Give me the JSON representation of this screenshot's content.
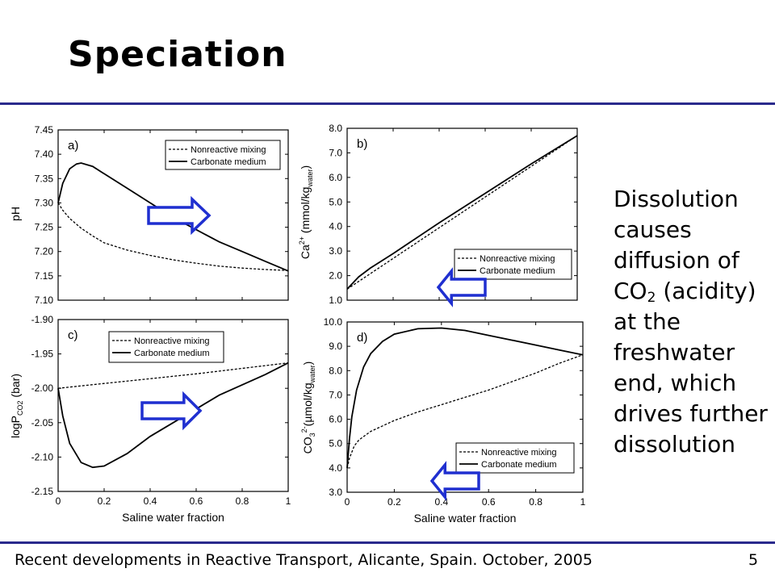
{
  "slide": {
    "title": "Speciation",
    "side_text": {
      "line1": "Dissolution causes diffusion of CO",
      "sub": "2",
      "line2": " (acidity) at the freshwater end, which drives further dissolution"
    },
    "footer": "Recent developments in Reactive Transport, Alicante, Spain. October, 2005",
    "page_number": "5",
    "colors": {
      "rule": "#2a2a8c",
      "arrow": "#1f2fd0",
      "ink": "#000000"
    }
  },
  "chart_data": [
    {
      "type": "line",
      "panel_label": "a)",
      "xlabel": "",
      "ylabel": "pH",
      "xlim": [
        0,
        1
      ],
      "ylim": [
        7.1,
        7.45
      ],
      "yticks": [
        "7.45",
        "7.40",
        "7.35",
        "7.30",
        "7.25",
        "7.20",
        "7.15",
        "7.10"
      ],
      "legend": [
        "Nonreactive mixing",
        "Carbonate medium"
      ],
      "series": [
        {
          "name": "Nonreactive mixing",
          "style": "dashed",
          "x": [
            0,
            0.02,
            0.05,
            0.1,
            0.15,
            0.2,
            0.3,
            0.4,
            0.5,
            0.6,
            0.7,
            0.8,
            0.9,
            1.0
          ],
          "y": [
            7.3,
            7.285,
            7.268,
            7.248,
            7.232,
            7.218,
            7.203,
            7.192,
            7.183,
            7.176,
            7.17,
            7.166,
            7.163,
            7.161
          ]
        },
        {
          "name": "Carbonate medium",
          "style": "solid",
          "x": [
            0,
            0.02,
            0.05,
            0.08,
            0.1,
            0.15,
            0.2,
            0.3,
            0.4,
            0.5,
            0.6,
            0.7,
            0.8,
            0.9,
            1.0
          ],
          "y": [
            7.3,
            7.34,
            7.37,
            7.38,
            7.382,
            7.375,
            7.36,
            7.33,
            7.3,
            7.27,
            7.245,
            7.22,
            7.2,
            7.18,
            7.16
          ]
        }
      ]
    },
    {
      "type": "line",
      "panel_label": "b)",
      "xlabel": "",
      "ylabel": "Ca2+ (mmol/kgwater)",
      "xlim": [
        0,
        1
      ],
      "ylim": [
        1.0,
        8.0
      ],
      "yticks": [
        "8.0",
        "7.0",
        "6.0",
        "5.0",
        "4.0",
        "3.0",
        "2.0",
        "1.0"
      ],
      "legend": [
        "Nonreactive mixing",
        "Carbonate medium"
      ],
      "series": [
        {
          "name": "Nonreactive mixing",
          "style": "dashed",
          "x": [
            0,
            1.0
          ],
          "y": [
            1.45,
            7.7
          ]
        },
        {
          "name": "Carbonate medium",
          "style": "solid",
          "x": [
            0,
            0.05,
            0.1,
            0.2,
            0.4,
            0.6,
            0.8,
            1.0
          ],
          "y": [
            1.45,
            1.95,
            2.3,
            2.9,
            4.15,
            5.35,
            6.55,
            7.7
          ]
        }
      ]
    },
    {
      "type": "line",
      "panel_label": "c)",
      "xlabel": "Saline water fraction",
      "ylabel": "logP CO2 (bar)",
      "xlim": [
        0,
        1
      ],
      "xticks": [
        "0",
        "0.2",
        "0.4",
        "0.6",
        "0.8",
        "1"
      ],
      "ylim": [
        -2.15,
        -1.9
      ],
      "yticks": [
        "-1.90",
        "-1.95",
        "-2.00",
        "-2.05",
        "-2.10",
        "-2.15"
      ],
      "legend": [
        "Nonreactive mixing",
        "Carbonate medium"
      ],
      "series": [
        {
          "name": "Nonreactive mixing",
          "style": "dashed",
          "x": [
            0,
            0.2,
            0.4,
            0.6,
            0.8,
            1.0
          ],
          "y": [
            -2.0,
            -1.993,
            -1.986,
            -1.979,
            -1.971,
            -1.963
          ]
        },
        {
          "name": "Carbonate medium",
          "style": "solid",
          "x": [
            0,
            0.02,
            0.05,
            0.1,
            0.15,
            0.2,
            0.3,
            0.4,
            0.5,
            0.6,
            0.7,
            0.8,
            0.9,
            1.0
          ],
          "y": [
            -2.0,
            -2.04,
            -2.08,
            -2.108,
            -2.115,
            -2.113,
            -2.095,
            -2.07,
            -2.05,
            -2.03,
            -2.01,
            -1.995,
            -1.98,
            -1.963
          ]
        }
      ]
    },
    {
      "type": "line",
      "panel_label": "d)",
      "xlabel": "Saline water fraction",
      "ylabel": "CO3 2- (µmol/kgwater)",
      "xlim": [
        0,
        1
      ],
      "xticks": [
        "0",
        "0.2",
        "0.4",
        "0.6",
        "0.8",
        "1"
      ],
      "ylim": [
        3.0,
        10.0
      ],
      "yticks": [
        "10.0",
        "9.0",
        "8.0",
        "7.0",
        "6.0",
        "5.0",
        "4.0",
        "3.0"
      ],
      "legend": [
        "Nonreactive mixing",
        "Carbonate medium"
      ],
      "series": [
        {
          "name": "Nonreactive mixing",
          "style": "dashed",
          "x": [
            0,
            0.01,
            0.03,
            0.05,
            0.1,
            0.2,
            0.3,
            0.4,
            0.5,
            0.6,
            0.7,
            0.8,
            0.9,
            1.0
          ],
          "y": [
            4.0,
            4.4,
            4.9,
            5.15,
            5.5,
            5.95,
            6.3,
            6.6,
            6.9,
            7.2,
            7.55,
            7.9,
            8.3,
            8.65
          ]
        },
        {
          "name": "Carbonate medium",
          "style": "solid",
          "x": [
            0,
            0.01,
            0.02,
            0.04,
            0.07,
            0.1,
            0.15,
            0.2,
            0.3,
            0.4,
            0.5,
            0.6,
            0.7,
            0.8,
            0.9,
            1.0
          ],
          "y": [
            4.0,
            5.2,
            6.1,
            7.2,
            8.15,
            8.7,
            9.2,
            9.5,
            9.72,
            9.75,
            9.65,
            9.45,
            9.25,
            9.05,
            8.85,
            8.65
          ]
        }
      ]
    }
  ]
}
